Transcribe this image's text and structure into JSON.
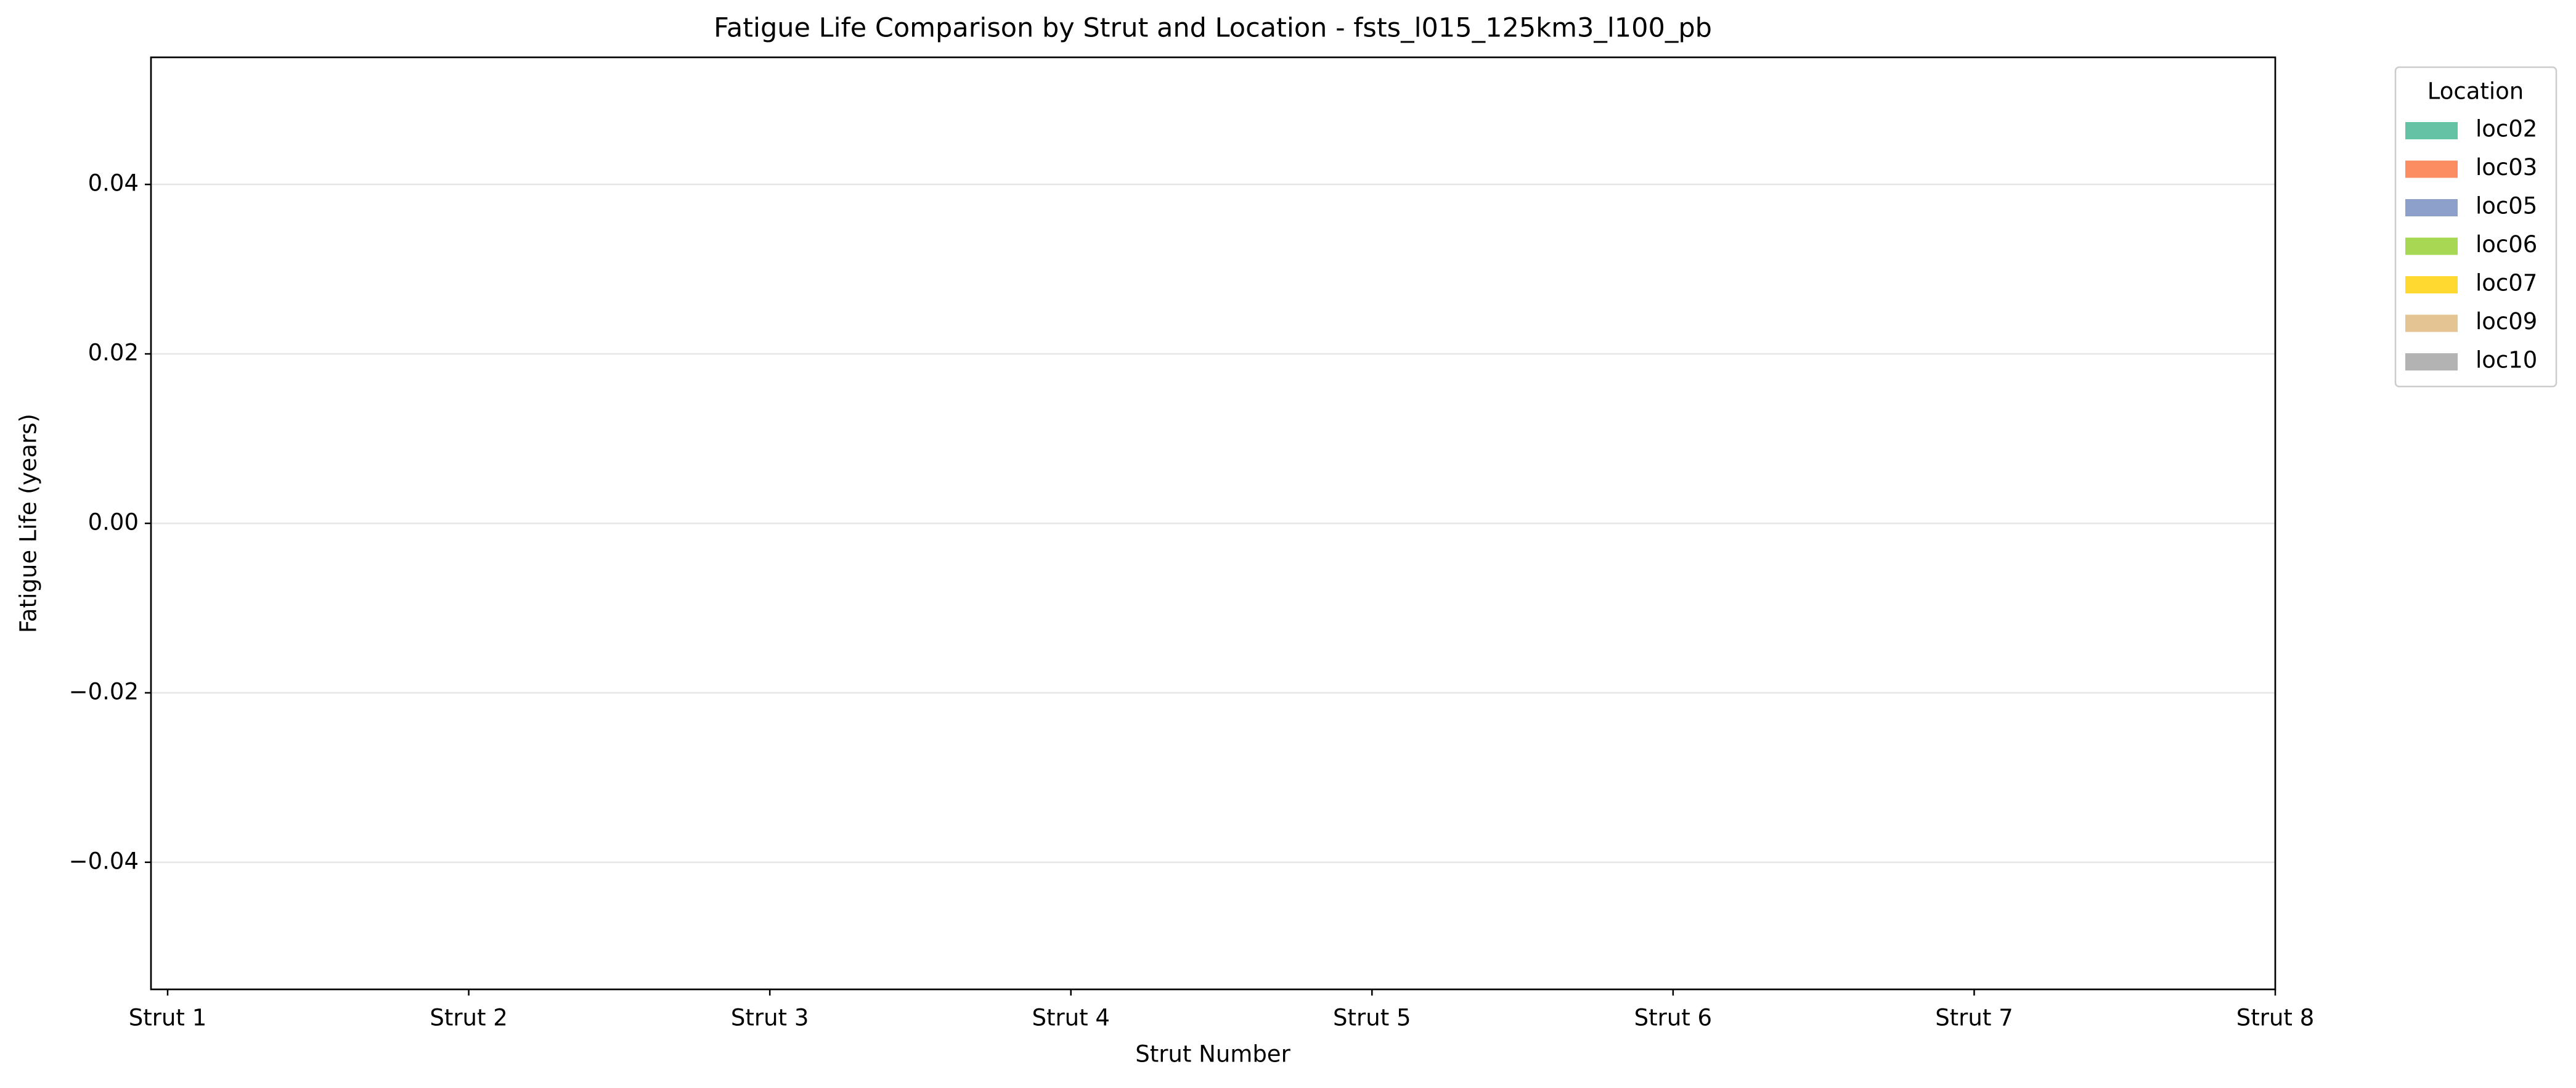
{
  "chart_data": {
    "type": "bar",
    "title": "Fatigue Life Comparison by Strut and Location - fsts_l015_125km3_l100_pb",
    "x_label": "Strut Number",
    "y_label": "Fatigue Life (years)",
    "legend_title": "Location",
    "legend_position": "outside upper right",
    "categories": [
      "Strut 1",
      "Strut 2",
      "Strut 3",
      "Strut 4",
      "Strut 5",
      "Strut 6",
      "Strut 7",
      "Strut 8"
    ],
    "series": [
      {
        "name": "loc02",
        "color": "#66c2a5",
        "values": [
          0,
          0,
          0,
          0,
          0,
          0,
          0,
          0
        ]
      },
      {
        "name": "loc03",
        "color": "#fc8d62",
        "values": [
          0,
          0,
          0,
          0,
          0,
          0,
          0,
          0
        ]
      },
      {
        "name": "loc05",
        "color": "#8da0cb",
        "values": [
          0,
          0,
          0,
          0,
          0,
          0,
          0,
          0
        ]
      },
      {
        "name": "loc06",
        "color": "#a6d854",
        "values": [
          0,
          0,
          0,
          0,
          0,
          0,
          0,
          0
        ]
      },
      {
        "name": "loc07",
        "color": "#ffd92f",
        "values": [
          0,
          0,
          0,
          0,
          0,
          0,
          0,
          0
        ]
      },
      {
        "name": "loc09",
        "color": "#e5c494",
        "values": [
          0,
          0,
          0,
          0,
          0,
          0,
          0,
          0
        ]
      },
      {
        "name": "loc10",
        "color": "#b3b3b3",
        "values": [
          0,
          0,
          0,
          0,
          0,
          0,
          0,
          0
        ]
      }
    ],
    "ylim": [
      -0.055,
      0.055
    ],
    "yticks": [
      {
        "value": -0.04,
        "label": "−0.04"
      },
      {
        "value": -0.02,
        "label": "−0.02"
      },
      {
        "value": 0,
        "label": "0.00"
      },
      0.02,
      0.04
    ],
    "grid": true
  }
}
